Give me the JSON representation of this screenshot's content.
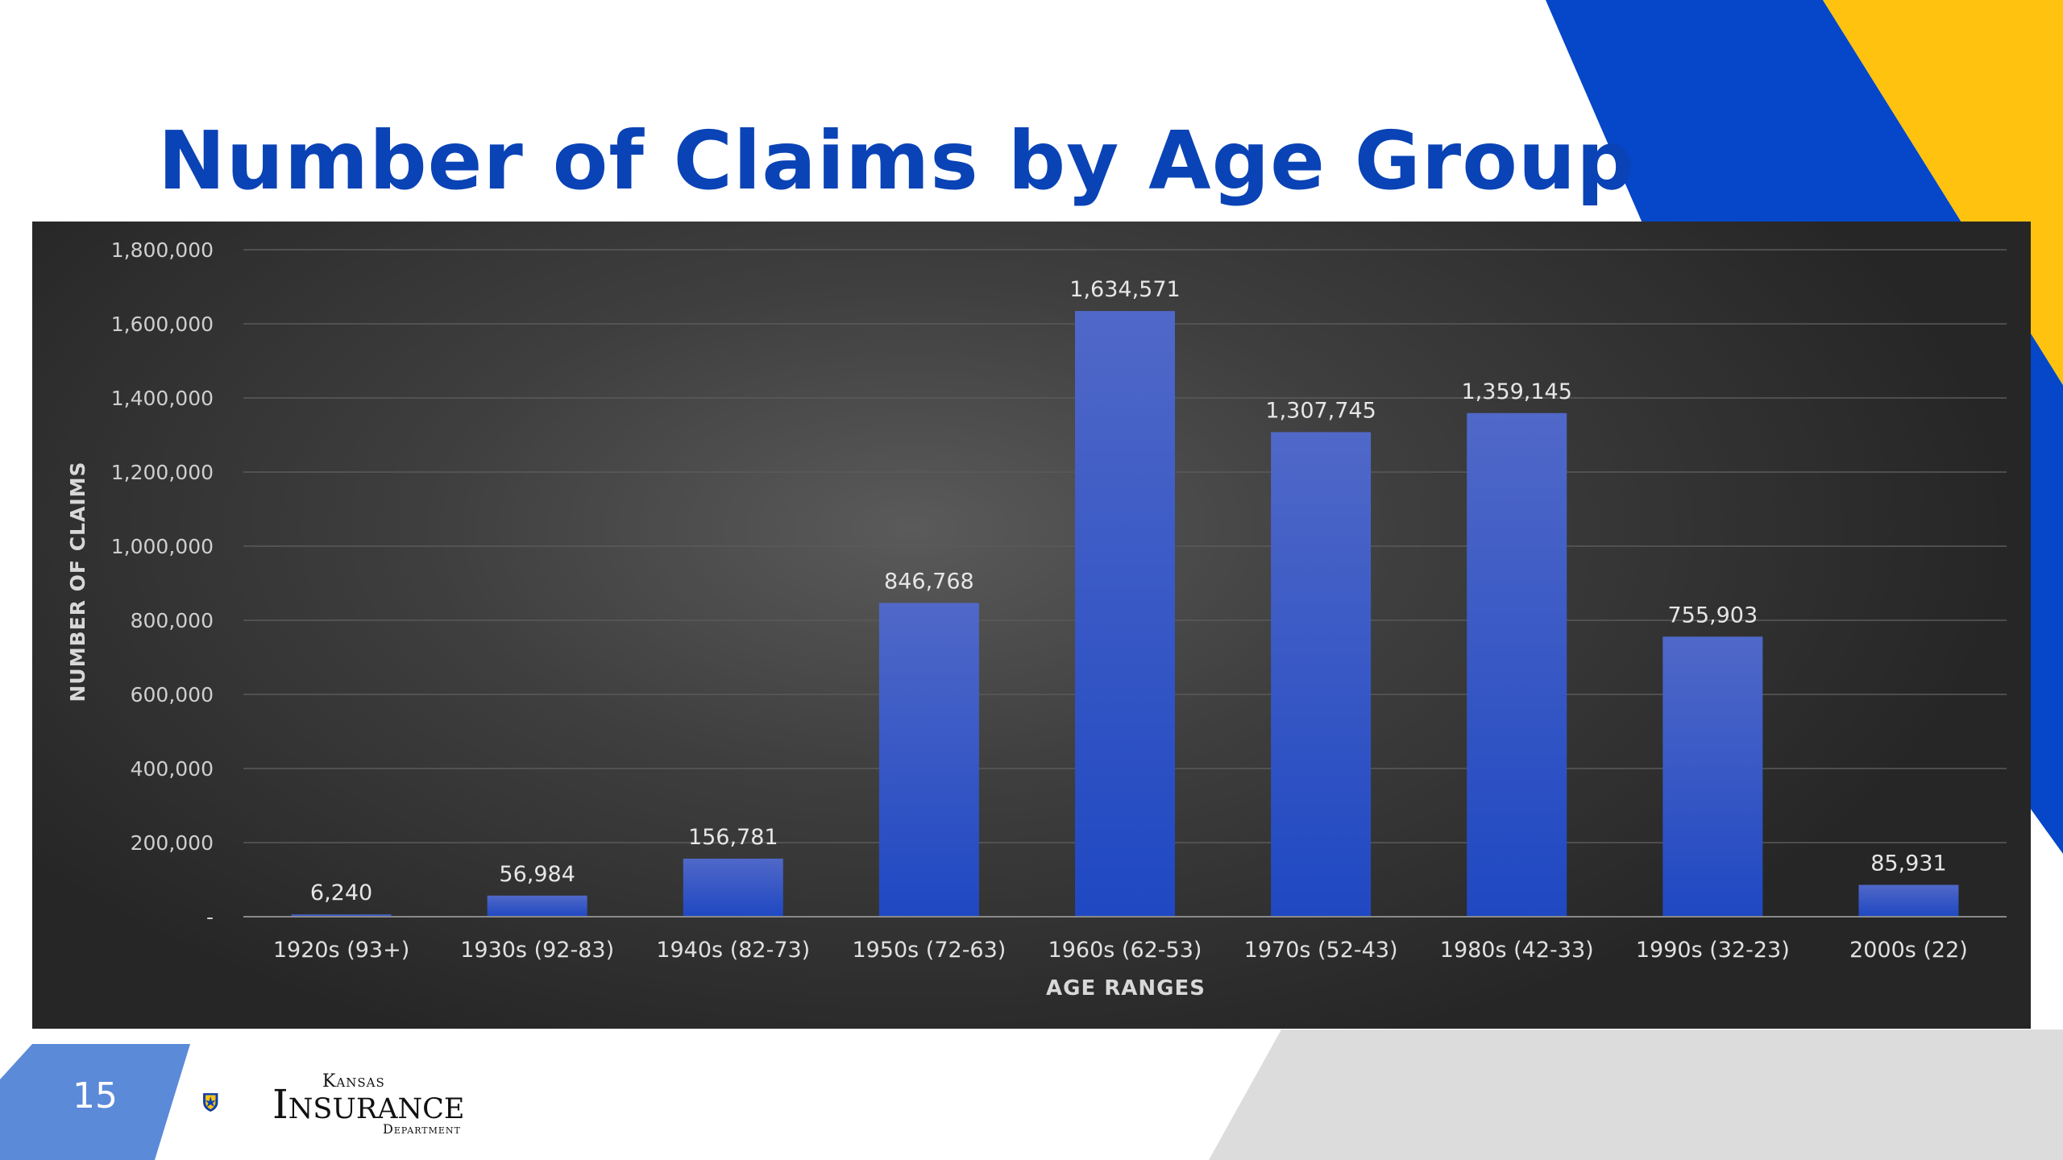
{
  "slide": {
    "title": "Number of Claims by Age Group",
    "page_number": "15"
  },
  "logo": {
    "line1": "Kansas",
    "line2": "Insurance",
    "line3": "Department"
  },
  "colors": {
    "title": "#0a43b6",
    "bar_top": "#5068c8",
    "bar_bottom": "#1f48c2",
    "accent_blue": "#0547c8",
    "accent_yellow": "#ffc20e",
    "page_tab": "#5b8ad8"
  },
  "chart_data": {
    "type": "bar",
    "title": "",
    "xlabel": "AGE RANGES",
    "ylabel": "NUMBER OF CLAIMS",
    "ylim": [
      0,
      1800000
    ],
    "y_ticks": [
      0,
      200000,
      400000,
      600000,
      800000,
      1000000,
      1200000,
      1400000,
      1600000,
      1800000
    ],
    "y_tick_labels": [
      "-",
      "200,000",
      "400,000",
      "600,000",
      "800,000",
      "1,000,000",
      "1,200,000",
      "1,400,000",
      "1,600,000",
      "1,800,000"
    ],
    "grid": true,
    "legend": "none",
    "categories": [
      "1920s (93+)",
      "1930s (92-83)",
      "1940s (82-73)",
      "1950s (72-63)",
      "1960s (62-53)",
      "1970s (52-43)",
      "1980s (42-33)",
      "1990s (32-23)",
      "2000s (22)"
    ],
    "values": [
      6240,
      56984,
      156781,
      846768,
      1634571,
      1307745,
      1359145,
      755903,
      85931
    ],
    "data_labels": [
      "6,240",
      "56,984",
      "156,781",
      "846,768",
      "1,634,571",
      "1,307,745",
      "1,359,145",
      "755,903",
      "85,931"
    ]
  }
}
